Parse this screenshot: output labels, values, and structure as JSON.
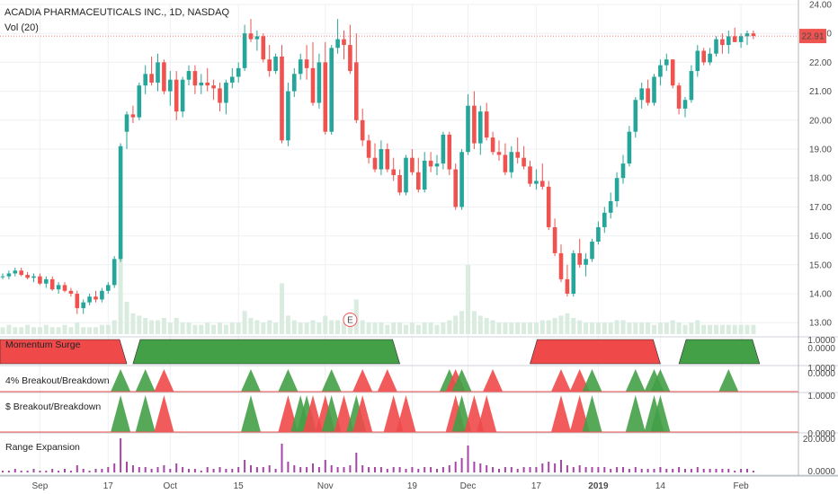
{
  "header": {
    "title": "ACADIA PHARMACEUTICALS INC., 1D, NASDAQ",
    "volume_label": "Vol (20)"
  },
  "colors": {
    "up": "#26a69a",
    "down": "#ef5350",
    "green_fill": "#43a047",
    "red_fill": "#f0494a",
    "volume": "#d9ecdf",
    "range_bar": "#a646a6",
    "grid": "#eef0f3",
    "axis": "#505050",
    "price_tag": "#ef5350"
  },
  "chart_data": {
    "type": "candlestick",
    "y_axis": {
      "ticks": [
        "24.00",
        "23.00",
        "22.00",
        "21.00",
        "20.00",
        "19.00",
        "18.00",
        "17.00",
        "16.00",
        "15.00",
        "14.00",
        "13.00"
      ],
      "range": [
        12.6,
        24.1
      ]
    },
    "x_axis": {
      "labels": [
        "Sep",
        "17",
        "Oct",
        "15",
        "Nov",
        "19",
        "Dec",
        "17",
        "2019",
        "14",
        "Feb"
      ]
    },
    "last_price_label": "22.91",
    "earnings_marker": "E",
    "candles": [
      [
        14.6,
        14.7,
        14.5,
        14.6
      ],
      [
        14.6,
        14.8,
        14.5,
        14.7
      ],
      [
        14.7,
        14.9,
        14.6,
        14.8
      ],
      [
        14.8,
        14.9,
        14.6,
        14.65
      ],
      [
        14.65,
        14.75,
        14.5,
        14.55
      ],
      [
        14.55,
        14.7,
        14.4,
        14.6
      ],
      [
        14.6,
        14.7,
        14.3,
        14.35
      ],
      [
        14.35,
        14.6,
        14.2,
        14.5
      ],
      [
        14.5,
        14.6,
        14.1,
        14.15
      ],
      [
        14.15,
        14.4,
        14.0,
        14.3
      ],
      [
        14.3,
        14.4,
        14.05,
        14.1
      ],
      [
        14.1,
        14.2,
        13.9,
        14.0
      ],
      [
        14.0,
        14.1,
        13.3,
        13.5
      ],
      [
        13.5,
        13.8,
        13.3,
        13.7
      ],
      [
        13.7,
        14.0,
        13.6,
        13.9
      ],
      [
        13.9,
        14.1,
        13.7,
        13.8
      ],
      [
        13.8,
        14.2,
        13.7,
        14.1
      ],
      [
        14.1,
        14.4,
        14.0,
        14.3
      ],
      [
        14.3,
        15.3,
        14.2,
        15.2
      ],
      [
        15.2,
        19.2,
        15.1,
        19.1
      ],
      [
        19.6,
        20.3,
        19.0,
        20.2
      ],
      [
        20.2,
        20.5,
        19.9,
        20.1
      ],
      [
        20.1,
        21.3,
        20.0,
        21.2
      ],
      [
        21.2,
        21.9,
        20.9,
        21.6
      ],
      [
        21.6,
        22.2,
        21.2,
        21.3
      ],
      [
        21.3,
        22.3,
        21.0,
        22.0
      ],
      [
        22.0,
        22.1,
        20.9,
        21.0
      ],
      [
        21.0,
        21.7,
        20.5,
        21.4
      ],
      [
        21.4,
        21.7,
        20.0,
        20.3
      ],
      [
        20.3,
        21.5,
        20.1,
        21.4
      ],
      [
        21.4,
        21.9,
        21.2,
        21.7
      ],
      [
        21.7,
        21.9,
        20.9,
        21.2
      ],
      [
        21.2,
        21.6,
        20.9,
        21.3
      ],
      [
        21.3,
        21.8,
        21.0,
        21.2
      ],
      [
        21.2,
        21.4,
        20.7,
        21.1
      ],
      [
        21.1,
        21.3,
        20.3,
        20.6
      ],
      [
        20.6,
        21.4,
        20.2,
        21.3
      ],
      [
        21.3,
        21.8,
        21.1,
        21.5
      ],
      [
        21.5,
        22.0,
        21.3,
        21.8
      ],
      [
        21.8,
        23.3,
        21.7,
        23.0
      ],
      [
        23.0,
        23.5,
        22.7,
        22.8
      ],
      [
        22.8,
        23.1,
        22.4,
        22.9
      ],
      [
        22.9,
        23.0,
        22.0,
        22.1
      ],
      [
        22.1,
        22.6,
        21.5,
        21.7
      ],
      [
        21.7,
        22.3,
        21.6,
        22.2
      ],
      [
        22.2,
        22.6,
        19.2,
        19.3
      ],
      [
        19.3,
        21.3,
        19.1,
        21.0
      ],
      [
        21.0,
        21.8,
        20.8,
        21.6
      ],
      [
        21.6,
        22.3,
        21.4,
        22.1
      ],
      [
        22.1,
        22.6,
        21.4,
        21.8
      ],
      [
        21.8,
        22.7,
        20.5,
        20.6
      ],
      [
        20.6,
        22.3,
        20.4,
        22.0
      ],
      [
        22.0,
        22.7,
        19.5,
        19.6
      ],
      [
        19.6,
        22.6,
        19.5,
        22.5
      ],
      [
        22.5,
        23.5,
        22.3,
        22.8
      ],
      [
        22.8,
        23.1,
        22.1,
        22.6
      ],
      [
        22.6,
        23.3,
        21.6,
        21.7
      ],
      [
        22.0,
        23.0,
        19.9,
        20.0
      ],
      [
        20.0,
        20.4,
        19.1,
        19.3
      ],
      [
        19.3,
        19.5,
        18.5,
        18.7
      ],
      [
        18.7,
        19.2,
        18.2,
        18.3
      ],
      [
        18.3,
        19.3,
        18.1,
        19.0
      ],
      [
        19.0,
        19.2,
        18.2,
        18.3
      ],
      [
        18.3,
        18.7,
        17.9,
        18.1
      ],
      [
        18.1,
        18.3,
        17.4,
        17.5
      ],
      [
        17.5,
        18.8,
        17.4,
        18.7
      ],
      [
        18.7,
        19.0,
        18.1,
        18.2
      ],
      [
        18.2,
        18.7,
        17.5,
        17.6
      ],
      [
        17.6,
        18.9,
        17.5,
        18.6
      ],
      [
        18.6,
        18.9,
        18.2,
        18.4
      ],
      [
        18.4,
        18.8,
        18.1,
        18.5
      ],
      [
        18.5,
        19.6,
        18.3,
        19.5
      ],
      [
        19.5,
        19.6,
        18.1,
        18.3
      ],
      [
        18.3,
        18.5,
        16.9,
        17.0
      ],
      [
        17.0,
        19.0,
        16.9,
        18.9
      ],
      [
        18.9,
        20.9,
        18.8,
        20.5
      ],
      [
        20.5,
        21.0,
        19.0,
        19.2
      ],
      [
        19.2,
        20.5,
        18.8,
        20.3
      ],
      [
        20.3,
        20.6,
        19.3,
        19.4
      ],
      [
        19.4,
        19.6,
        18.8,
        18.9
      ],
      [
        18.9,
        19.3,
        18.6,
        18.8
      ],
      [
        18.8,
        19.2,
        18.1,
        18.2
      ],
      [
        18.2,
        19.1,
        18.0,
        18.9
      ],
      [
        18.9,
        19.4,
        18.5,
        18.7
      ],
      [
        18.7,
        19.1,
        18.3,
        18.4
      ],
      [
        18.4,
        18.6,
        17.7,
        17.8
      ],
      [
        17.8,
        18.3,
        17.6,
        17.9
      ],
      [
        17.9,
        18.5,
        17.6,
        17.7
      ],
      [
        17.7,
        17.9,
        16.2,
        16.3
      ],
      [
        16.3,
        16.6,
        15.3,
        15.4
      ],
      [
        15.4,
        15.7,
        14.4,
        14.5
      ],
      [
        14.5,
        15.0,
        13.9,
        14.0
      ],
      [
        14.0,
        15.5,
        13.9,
        15.4
      ],
      [
        15.4,
        15.9,
        14.9,
        15.0
      ],
      [
        15.0,
        15.4,
        14.6,
        15.2
      ],
      [
        15.2,
        15.9,
        15.1,
        15.8
      ],
      [
        15.8,
        16.5,
        15.7,
        16.3
      ],
      [
        16.3,
        17.0,
        16.1,
        16.8
      ],
      [
        16.8,
        17.5,
        16.6,
        17.2
      ],
      [
        17.2,
        18.2,
        17.0,
        18.0
      ],
      [
        18.0,
        18.8,
        17.8,
        18.5
      ],
      [
        18.5,
        19.8,
        18.4,
        19.6
      ],
      [
        19.6,
        20.8,
        19.4,
        20.7
      ],
      [
        20.7,
        21.3,
        20.4,
        21.1
      ],
      [
        21.1,
        21.4,
        20.5,
        20.6
      ],
      [
        20.6,
        21.6,
        20.5,
        21.5
      ],
      [
        21.5,
        22.1,
        21.2,
        21.9
      ],
      [
        21.9,
        22.3,
        21.7,
        22.1
      ],
      [
        22.1,
        22.1,
        21.1,
        21.2
      ],
      [
        21.2,
        21.3,
        20.2,
        20.4
      ],
      [
        20.4,
        20.8,
        20.1,
        20.7
      ],
      [
        20.7,
        21.9,
        20.6,
        21.7
      ],
      [
        21.7,
        22.6,
        21.5,
        22.4
      ],
      [
        22.4,
        22.5,
        21.9,
        22.0
      ],
      [
        22.0,
        22.5,
        21.9,
        22.3
      ],
      [
        22.3,
        22.9,
        22.2,
        22.8
      ],
      [
        22.8,
        23.0,
        22.3,
        22.6
      ],
      [
        22.6,
        23.1,
        22.3,
        22.9
      ],
      [
        22.9,
        23.2,
        22.7,
        22.7
      ],
      [
        22.7,
        23.0,
        22.5,
        22.9
      ],
      [
        22.9,
        23.1,
        22.6,
        23.0
      ],
      [
        23.0,
        23.1,
        22.8,
        22.91
      ]
    ],
    "volume": [
      3,
      4,
      3,
      3,
      4,
      3,
      3,
      4,
      3,
      3,
      4,
      3,
      5,
      3,
      3,
      3,
      4,
      4,
      6,
      35,
      14,
      9,
      8,
      7,
      6,
      6,
      7,
      5,
      7,
      5,
      5,
      4,
      4,
      5,
      4,
      5,
      4,
      5,
      5,
      10,
      7,
      6,
      5,
      6,
      5,
      22,
      8,
      6,
      5,
      5,
      6,
      5,
      8,
      6,
      6,
      5,
      6,
      15,
      6,
      5,
      5,
      5,
      4,
      5,
      5,
      4,
      5,
      4,
      5,
      5,
      4,
      5,
      6,
      8,
      10,
      30,
      10,
      8,
      7,
      6,
      5,
      5,
      5,
      5,
      5,
      5,
      5,
      6,
      6,
      7,
      8,
      9,
      7,
      6,
      5,
      5,
      5,
      5,
      5,
      6,
      6,
      5,
      5,
      5,
      5,
      4,
      5,
      5,
      6,
      5,
      4,
      5,
      6,
      4,
      4,
      4,
      4,
      4,
      4,
      4,
      4,
      4
    ],
    "panes": [
      {
        "title": "Momentum Surge",
        "ticks": [
          "1.0000",
          "0.0000"
        ],
        "blocks": [
          {
            "from": 0,
            "to": 20,
            "dir": "down"
          },
          {
            "from": 21,
            "to": 64,
            "dir": "up"
          },
          {
            "from": 85,
            "to": 106,
            "dir": "down"
          },
          {
            "from": 109,
            "to": 122,
            "dir": "up"
          }
        ]
      },
      {
        "title": "4% Breakout/Breakdown",
        "ticks": [
          "1.0000",
          "0.0000"
        ],
        "triangles": [
          {
            "i": 19,
            "dir": "up"
          },
          {
            "i": 23,
            "dir": "up"
          },
          {
            "i": 26,
            "dir": "down"
          },
          {
            "i": 40,
            "dir": "up"
          },
          {
            "i": 46,
            "dir": "up"
          },
          {
            "i": 53,
            "dir": "up"
          },
          {
            "i": 58,
            "dir": "down"
          },
          {
            "i": 62,
            "dir": "down"
          },
          {
            "i": 72,
            "dir": "up"
          },
          {
            "i": 73,
            "dir": "down"
          },
          {
            "i": 74,
            "dir": "up"
          },
          {
            "i": 79,
            "dir": "down"
          },
          {
            "i": 90,
            "dir": "down"
          },
          {
            "i": 93,
            "dir": "down"
          },
          {
            "i": 95,
            "dir": "up"
          },
          {
            "i": 102,
            "dir": "up"
          },
          {
            "i": 105,
            "dir": "up"
          },
          {
            "i": 106,
            "dir": "up"
          },
          {
            "i": 117,
            "dir": "up"
          }
        ]
      },
      {
        "title": "$ Breakout/Breakdown",
        "ticks": [
          "1.0000",
          "0.0000"
        ],
        "triangles": [
          {
            "i": 19,
            "dir": "up"
          },
          {
            "i": 23,
            "dir": "up"
          },
          {
            "i": 26,
            "dir": "down"
          },
          {
            "i": 40,
            "dir": "up"
          },
          {
            "i": 46,
            "dir": "down"
          },
          {
            "i": 48,
            "dir": "up"
          },
          {
            "i": 49,
            "dir": "up"
          },
          {
            "i": 50,
            "dir": "down"
          },
          {
            "i": 52,
            "dir": "down"
          },
          {
            "i": 53,
            "dir": "up"
          },
          {
            "i": 55,
            "dir": "down"
          },
          {
            "i": 57,
            "dir": "up"
          },
          {
            "i": 58,
            "dir": "down"
          },
          {
            "i": 63,
            "dir": "down"
          },
          {
            "i": 65,
            "dir": "down"
          },
          {
            "i": 73,
            "dir": "down"
          },
          {
            "i": 74,
            "dir": "up"
          },
          {
            "i": 76,
            "dir": "down"
          },
          {
            "i": 78,
            "dir": "down"
          },
          {
            "i": 90,
            "dir": "down"
          },
          {
            "i": 93,
            "dir": "down"
          },
          {
            "i": 95,
            "dir": "up"
          },
          {
            "i": 102,
            "dir": "up"
          },
          {
            "i": 105,
            "dir": "up"
          },
          {
            "i": 106,
            "dir": "up"
          }
        ]
      },
      {
        "title": "Range Expansion",
        "ticks": [
          "20.0000",
          "0.0000"
        ],
        "bars": [
          1,
          1,
          2,
          1,
          1,
          2,
          1,
          1,
          2,
          1,
          2,
          1,
          4,
          2,
          1,
          2,
          2,
          3,
          5,
          19,
          6,
          4,
          3,
          3,
          2,
          3,
          4,
          2,
          5,
          3,
          2,
          2,
          1,
          3,
          2,
          3,
          2,
          2,
          3,
          7,
          4,
          3,
          3,
          4,
          2,
          16,
          6,
          4,
          3,
          3,
          5,
          3,
          7,
          4,
          3,
          3,
          4,
          11,
          4,
          3,
          3,
          3,
          2,
          3,
          3,
          2,
          3,
          2,
          3,
          3,
          2,
          3,
          4,
          6,
          8,
          15,
          6,
          5,
          4,
          3,
          2,
          3,
          3,
          2,
          3,
          3,
          3,
          5,
          6,
          5,
          7,
          4,
          3,
          4,
          3,
          3,
          3,
          3,
          2,
          3,
          3,
          2,
          3,
          2,
          2,
          2,
          3,
          2,
          2,
          3,
          2,
          2,
          3,
          2,
          2,
          2,
          2,
          2,
          1,
          2,
          2,
          1
        ]
      }
    ]
  }
}
